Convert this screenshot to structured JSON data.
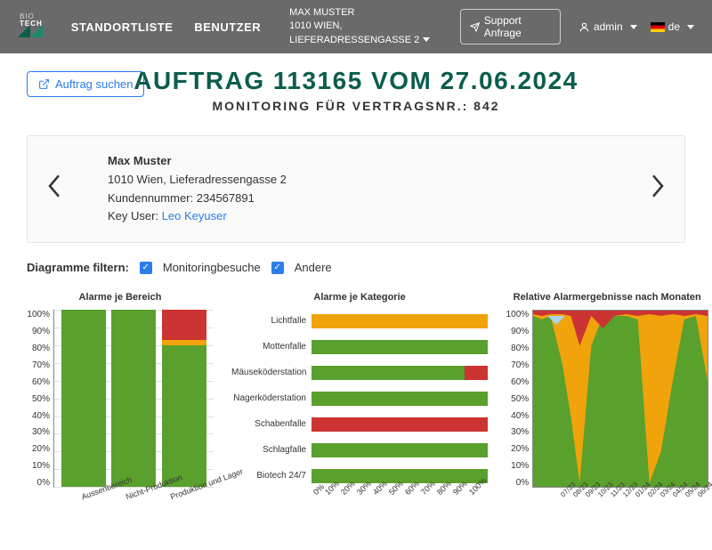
{
  "colors": {
    "primary_dark": "#0b5d4d",
    "blue": "#2b7de9",
    "green": "#5aa02c",
    "orange": "#f0a30a",
    "red": "#cc3333",
    "lightblue": "#a8d4e8"
  },
  "topbar": {
    "logo_line1": "BIO",
    "logo_line2": "TECH",
    "nav1": "STANDORTLISTE",
    "nav2": "BENUTZER",
    "location_name": "MAX MUSTER",
    "location_addr": "1010 WIEN, LIEFERADRESSENGASSE 2",
    "support_btn": "Support Anfrage",
    "user_label": "admin",
    "lang_label": "de"
  },
  "search_btn": "Auftrag suchen",
  "title_main": "AUFTRAG 113165 VOM 27.06.2024",
  "title_sub": "MONITORING FÜR VERTRAGSNR.: 842",
  "customer": {
    "name": "Max Muster",
    "addr": "1010 Wien, Lieferadressengasse 2",
    "num_label": "Kundennummer:",
    "num": "234567891",
    "keyuser_label": "Key User:",
    "keyuser": "Leo Keyuser"
  },
  "filter": {
    "label": "Diagramme filtern:",
    "opt1": "Monitoringbesuche",
    "opt2": "Andere"
  },
  "chart1": {
    "title": "Alarme je Bereich",
    "ylabels": [
      "100%",
      "90%",
      "80%",
      "70%",
      "60%",
      "50%",
      "40%",
      "30%",
      "20%",
      "10%",
      "0%"
    ],
    "categories": [
      "Aussenbereich",
      "Nicht-Produktion",
      "Produktion und Lager"
    ],
    "bars": [
      [
        {
          "c": "#5aa02c",
          "v": 100
        }
      ],
      [
        {
          "c": "#5aa02c",
          "v": 100
        }
      ],
      [
        {
          "c": "#5aa02c",
          "v": 80
        },
        {
          "c": "#f0a30a",
          "v": 3
        },
        {
          "c": "#cc3333",
          "v": 17
        }
      ]
    ]
  },
  "chart2": {
    "title": "Alarme je Kategorie",
    "xlabels": [
      "0%",
      "10%",
      "20%",
      "30%",
      "40%",
      "50%",
      "60%",
      "70%",
      "80%",
      "90%",
      "100%"
    ],
    "categories": [
      "Lichtfalle",
      "Mottenfalle",
      "Mäuseköderstation",
      "Nagerköderstation",
      "Schabenfalle",
      "Schlagfalle",
      "Biotech 24/7"
    ],
    "bars": [
      [
        {
          "c": "#f0a30a",
          "v": 100
        }
      ],
      [
        {
          "c": "#5aa02c",
          "v": 100
        }
      ],
      [
        {
          "c": "#5aa02c",
          "v": 87
        },
        {
          "c": "#cc3333",
          "v": 13
        }
      ],
      [
        {
          "c": "#5aa02c",
          "v": 100
        }
      ],
      [
        {
          "c": "#cc3333",
          "v": 100
        }
      ],
      [
        {
          "c": "#5aa02c",
          "v": 100
        }
      ],
      [
        {
          "c": "#5aa02c",
          "v": 100
        }
      ]
    ]
  },
  "chart3": {
    "title": "Relative Alarmergebnisse nach Monaten",
    "ylabels": [
      "100%",
      "90%",
      "80%",
      "70%",
      "60%",
      "50%",
      "40%",
      "30%",
      "20%",
      "10%",
      "0%"
    ],
    "xlabels": [
      "07/23",
      "08/23",
      "09/23",
      "10/23",
      "11/23",
      "12/23",
      "01/24",
      "02/24",
      "03/24",
      "04/24",
      "05/24",
      "06/24"
    ]
  }
}
